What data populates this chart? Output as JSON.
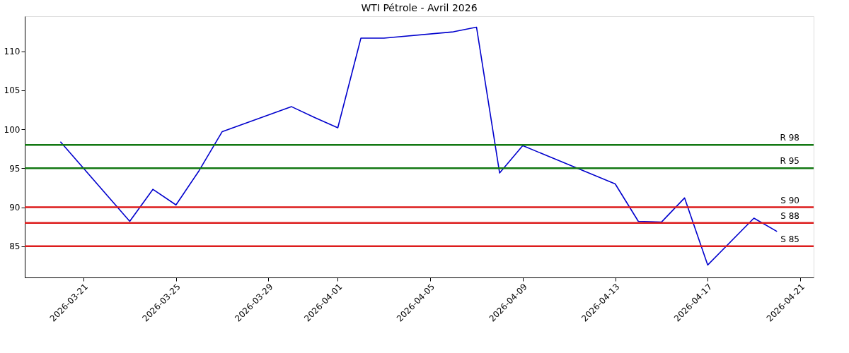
{
  "chart_data": {
    "type": "line",
    "title": "WTI Pétrole - Avril 2026",
    "x": [
      "2026-03-20",
      "2026-03-23",
      "2026-03-24",
      "2026-03-25",
      "2026-03-26",
      "2026-03-27",
      "2026-03-30",
      "2026-03-31",
      "2026-04-01",
      "2026-04-02",
      "2026-04-03",
      "2026-04-06",
      "2026-04-07",
      "2026-04-08",
      "2026-04-09",
      "2026-04-13",
      "2026-04-14",
      "2026-04-15",
      "2026-04-16",
      "2026-04-17",
      "2026-04-19",
      "2026-04-20"
    ],
    "series": [
      {
        "color": "#0000cd",
        "values": [
          98.4,
          88.2,
          92.3,
          90.3,
          94.7,
          99.7,
          102.9,
          101.5,
          100.2,
          111.7,
          111.7,
          112.5,
          113.1,
          94.4,
          97.9,
          93.0,
          88.2,
          88.1,
          91.2,
          82.6,
          88.6,
          86.9
        ]
      }
    ],
    "xlim": [
      "2026-03-18T11:00",
      "2026-04-21T14:00"
    ],
    "xticks": [
      {
        "value": "2026-03-21",
        "label": "2026-03-21"
      },
      {
        "value": "2026-03-25",
        "label": "2026-03-25"
      },
      {
        "value": "2026-03-29",
        "label": "2026-03-29"
      },
      {
        "value": "2026-04-01",
        "label": "2026-04-01"
      },
      {
        "value": "2026-04-05",
        "label": "2026-04-05"
      },
      {
        "value": "2026-04-09",
        "label": "2026-04-09"
      },
      {
        "value": "2026-04-13",
        "label": "2026-04-13"
      },
      {
        "value": "2026-04-17",
        "label": "2026-04-17"
      },
      {
        "value": "2026-04-21",
        "label": "2026-04-21"
      }
    ],
    "ylim": [
      81.0,
      114.5
    ],
    "yticks": [
      85,
      90,
      95,
      100,
      105,
      110
    ],
    "ref_lines": [
      {
        "axis": "y",
        "value": 98,
        "label": "R 98",
        "color": "#127812"
      },
      {
        "axis": "y",
        "value": 95,
        "label": "R 95",
        "color": "#127812"
      },
      {
        "axis": "y",
        "value": 90,
        "label": "S 90",
        "color": "#dd1c1c"
      },
      {
        "axis": "y",
        "value": 88,
        "label": "S 88",
        "color": "#dd1c1c"
      },
      {
        "axis": "y",
        "value": 85,
        "label": "S 85",
        "color": "#dd1c1c"
      }
    ],
    "grid": false
  }
}
